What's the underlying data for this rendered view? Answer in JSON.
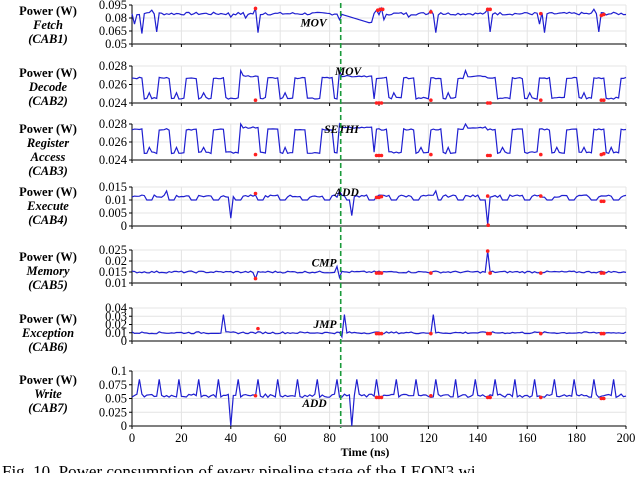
{
  "chart_data": {
    "type": "line",
    "title": "",
    "xlabel": "Time (ns)",
    "x_ticks": [
      0,
      20,
      40,
      60,
      80,
      100,
      120,
      140,
      160,
      180,
      200
    ],
    "xlim": [
      0,
      200
    ],
    "grid": true,
    "marker_line": {
      "x": 84.5,
      "color": "#1a9a3a",
      "style": "dashed"
    },
    "line_color": "#1f1fd0",
    "highlight_color": "#ff2020",
    "panels": [
      {
        "name": "fetch",
        "ylabel": [
          "Power (W)",
          "Fetch",
          "(CAB1)"
        ],
        "yticks": [
          "0.095",
          "0.08",
          "0.065",
          "0.05"
        ],
        "ylim": [
          0.05,
          0.095
        ],
        "annotation": {
          "text": "MOV",
          "x": 78,
          "y": 0.07
        },
        "baseline": 0.085,
        "events": [
          {
            "x": 1,
            "v": 0.073
          },
          {
            "x": 2.5,
            "v": 0.084
          },
          {
            "x": 4,
            "v": 0.062
          },
          {
            "x": 6,
            "v": 0.086
          },
          {
            "x": 8,
            "v": 0.089
          },
          {
            "x": 9.5,
            "v": 0.064
          },
          {
            "x": 40,
            "v": 0.081
          },
          {
            "x": 46,
            "v": 0.08
          },
          {
            "x": 49.5,
            "v": 0.091
          },
          {
            "x": 51,
            "v": 0.063
          },
          {
            "x": 54,
            "v": 0.086
          },
          {
            "x": 84,
            "v": 0.078
          },
          {
            "x": 97,
            "v": 0.075
          },
          {
            "x": 99,
            "v": 0.089
          },
          {
            "x": 100.5,
            "v": 0.091
          },
          {
            "x": 102,
            "v": 0.078
          },
          {
            "x": 112,
            "v": 0.081
          },
          {
            "x": 121,
            "v": 0.089
          },
          {
            "x": 122.5,
            "v": 0.063
          },
          {
            "x": 124.5,
            "v": 0.086
          },
          {
            "x": 143.5,
            "v": 0.09
          },
          {
            "x": 145,
            "v": 0.064
          },
          {
            "x": 146.5,
            "v": 0.086
          },
          {
            "x": 160,
            "v": 0.086
          },
          {
            "x": 165,
            "v": 0.073
          },
          {
            "x": 167,
            "v": 0.063
          },
          {
            "x": 169,
            "v": 0.086
          },
          {
            "x": 187,
            "v": 0.09
          },
          {
            "x": 189,
            "v": 0.064
          },
          {
            "x": 191,
            "v": 0.086
          }
        ],
        "highlights": [
          [
            50,
            0.091
          ],
          [
            99.5,
            0.089
          ],
          [
            100.5,
            0.09
          ],
          [
            101.5,
            0.09
          ],
          [
            121,
            0.087
          ],
          [
            144,
            0.09
          ],
          [
            145,
            0.09
          ],
          [
            165.5,
            0.085
          ],
          [
            190,
            0.083
          ],
          [
            191,
            0.084
          ]
        ]
      },
      {
        "name": "decode",
        "ylabel": [
          "Power (W)",
          "Decode",
          "(CAB2)"
        ],
        "yticks": [
          "0.028",
          "0.026",
          "0.024"
        ],
        "ylim": [
          0.024,
          0.028
        ],
        "annotation": {
          "text": "MOV",
          "x": 92,
          "y": 0.0279
        },
        "pattern": "square",
        "high": 0.0267,
        "low": 0.0243,
        "highlights": [
          [
            50,
            0.0243
          ],
          [
            99,
            0.024
          ],
          [
            100,
            0.024
          ],
          [
            101,
            0.024
          ],
          [
            121,
            0.0243
          ],
          [
            144,
            0.024
          ],
          [
            145,
            0.024
          ],
          [
            165.5,
            0.0243
          ],
          [
            190,
            0.0243
          ],
          [
            191,
            0.0243
          ]
        ]
      },
      {
        "name": "register-access",
        "ylabel": [
          "Power (W)",
          "Register",
          "Access",
          "(CAB3)"
        ],
        "yticks": [
          "0.028",
          "0.026",
          "0.024"
        ],
        "ylim": [
          0.024,
          0.028
        ],
        "annotation": {
          "text": "SETHI",
          "x": 91,
          "y": 0.0283
        },
        "pattern": "square",
        "high": 0.0274,
        "low": 0.0246,
        "highlights": [
          [
            50,
            0.0246
          ],
          [
            99,
            0.0245
          ],
          [
            100,
            0.0245
          ],
          [
            101,
            0.0245
          ],
          [
            121,
            0.0246
          ],
          [
            144,
            0.0245
          ],
          [
            145,
            0.0245
          ],
          [
            165.5,
            0.0246
          ],
          [
            190,
            0.0246
          ],
          [
            191,
            0.0247
          ]
        ]
      },
      {
        "name": "execute",
        "ylabel": [
          "Power (W)",
          "Execute",
          "(CAB4)"
        ],
        "yticks": [
          "0.015",
          "0.01",
          "0.005",
          "0"
        ],
        "ylim": [
          0,
          0.015
        ],
        "annotation": {
          "text": "ADD",
          "x": 91,
          "y": 0.0155
        },
        "baseline": 0.0115,
        "spikes": [
          [
            14,
            0.0135
          ],
          [
            40,
            0.003
          ],
          [
            84,
            0.0135
          ],
          [
            89,
            0.004
          ],
          [
            123,
            0.0135
          ],
          [
            144,
            0.0005
          ]
        ],
        "highlights": [
          [
            50,
            0.0125
          ],
          [
            99,
            0.011
          ],
          [
            100,
            0.011
          ],
          [
            101,
            0.0113
          ],
          [
            144,
            0.0115
          ],
          [
            144.2,
            0.0003
          ],
          [
            165.5,
            0.0115
          ],
          [
            190,
            0.0095
          ],
          [
            191,
            0.0095
          ]
        ]
      },
      {
        "name": "memory",
        "ylabel": [
          "Power (W)",
          "Memory",
          "(CAB5)"
        ],
        "yticks": [
          "0.025",
          "0.02",
          "0.015",
          "0.01"
        ],
        "ylim": [
          0.01,
          0.025
        ],
        "annotation": {
          "text": "CMP",
          "x": 82,
          "y": 0.0175
        },
        "baseline": 0.015,
        "highlights": [
          [
            50,
            0.012
          ],
          [
            99,
            0.0145
          ],
          [
            100,
            0.0145
          ],
          [
            101,
            0.0145
          ],
          [
            121,
            0.0145
          ],
          [
            144,
            0.0245
          ],
          [
            145,
            0.0145
          ],
          [
            165.5,
            0.0145
          ],
          [
            190,
            0.0145
          ],
          [
            191,
            0.0145
          ]
        ]
      },
      {
        "name": "exception",
        "ylabel": [
          "Power (W)",
          "Exception",
          "(CAB6)"
        ],
        "yticks": [
          "0.04",
          "0.03",
          "0.02",
          "0.01",
          "0"
        ],
        "ylim": [
          0,
          0.04
        ],
        "annotation": {
          "text": "JMP",
          "x": 82,
          "y": 0.016
        },
        "baseline": 0.01,
        "spikes": [
          [
            37,
            0.032
          ],
          [
            86,
            0.032
          ],
          [
            122,
            0.032
          ]
        ],
        "highlights": [
          [
            51,
            0.015
          ],
          [
            99,
            0.009
          ],
          [
            100,
            0.009
          ],
          [
            101,
            0.009
          ],
          [
            121,
            0.009
          ],
          [
            144,
            0.009
          ],
          [
            145,
            0.009
          ],
          [
            165.5,
            0.009
          ],
          [
            190,
            0.009
          ],
          [
            191,
            0.009
          ]
        ]
      },
      {
        "name": "write",
        "ylabel": [
          "Power (W)",
          "Write",
          "(CAB7)"
        ],
        "yticks": [
          "0.1",
          "0.075",
          "0.05",
          "0.025",
          "0"
        ],
        "ylim": [
          0,
          0.1
        ],
        "annotation": {
          "text": "ADD",
          "x": 78,
          "y": 0.035
        },
        "baseline": 0.055,
        "highlights": [
          [
            50,
            0.055
          ],
          [
            99,
            0.052
          ],
          [
            100,
            0.052
          ],
          [
            101,
            0.052
          ],
          [
            121,
            0.055
          ],
          [
            144,
            0.052
          ],
          [
            145,
            0.052
          ],
          [
            165.5,
            0.052
          ],
          [
            190,
            0.05
          ],
          [
            191,
            0.05
          ]
        ]
      }
    ]
  },
  "labels": {
    "p0": {
      "l1": "Power (W)",
      "l2": "Fetch",
      "l3": "(CAB1)"
    },
    "p1": {
      "l1": "Power (W)",
      "l2": "Decode",
      "l3": "(CAB2)"
    },
    "p2": {
      "l1": "Power (W)",
      "l2": "Register",
      "l3": "Access",
      "l4": "(CAB3)"
    },
    "p3": {
      "l1": "Power (W)",
      "l2": "Execute",
      "l3": "(CAB4)"
    },
    "p4": {
      "l1": "Power (W)",
      "l2": "Memory",
      "l3": "(CAB5)"
    },
    "p5": {
      "l1": "Power (W)",
      "l2": "Exception",
      "l3": "(CAB6)"
    },
    "p6": {
      "l1": "Power (W)",
      "l2": "Write",
      "l3": "(CAB7)"
    }
  },
  "caption": "Fig. 10.   Power consumption of every pipeline stage of the LEON3 wi"
}
